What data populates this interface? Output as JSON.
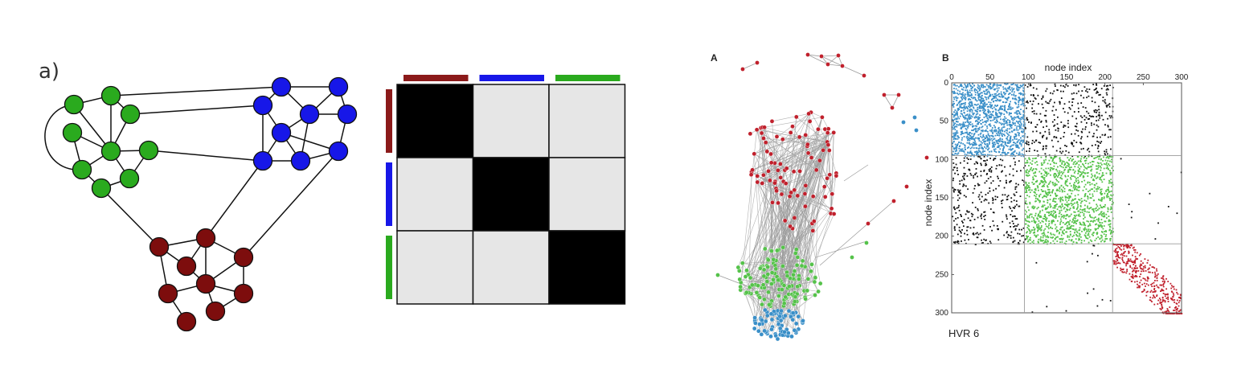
{
  "panel_a": {
    "label": "a)",
    "groups": [
      {
        "id": "green",
        "color": "#2aaa1e"
      },
      {
        "id": "blue",
        "color": "#1717e8"
      },
      {
        "id": "red",
        "color": "#7d0d0d"
      }
    ],
    "matrix": {
      "bar_colors": [
        "#8b1a1a",
        "#1717e8",
        "#2aaa1e"
      ],
      "cells": [
        [
          1,
          0,
          0
        ],
        [
          0,
          1,
          0
        ],
        [
          0,
          0,
          1
        ]
      ],
      "on_color": "#000000",
      "off_color": "#e6e6e6"
    }
  },
  "panel_b": {
    "label_A": "A",
    "label_B": "B",
    "colors": {
      "red": "#c0202c",
      "green": "#55c24a",
      "blue": "#3a8fc8"
    },
    "matrix_plot": {
      "x_title": "node index",
      "y_title": "node index",
      "x_ticks": [
        "0",
        "50",
        "100",
        "150",
        "200",
        "250",
        "300"
      ],
      "y_ticks": [
        "0",
        "50",
        "100",
        "150",
        "200",
        "250",
        "300"
      ],
      "x_range": [
        0,
        300
      ],
      "y_range": [
        0,
        300
      ],
      "block_bounds": [
        0,
        95,
        210,
        300
      ]
    },
    "caption": "HVR 6"
  }
}
